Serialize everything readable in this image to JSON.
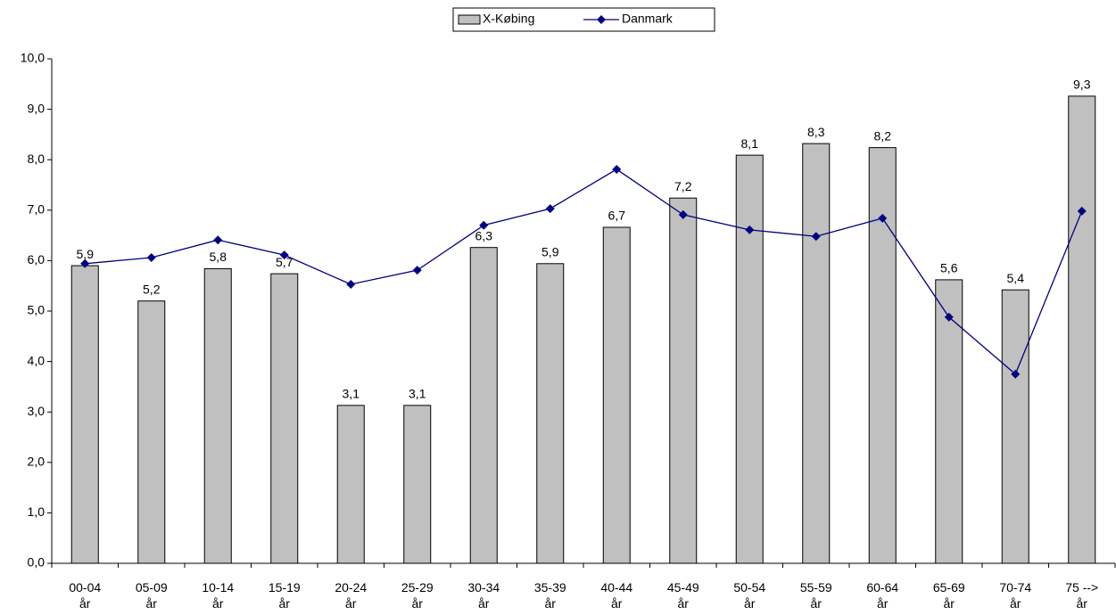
{
  "chart_data": {
    "type": "bar-line",
    "categories": [
      "00-04 år",
      "05-09 år",
      "10-14 år",
      "15-19 år",
      "20-24 år",
      "25-29 år",
      "30-34 år",
      "35-39 år",
      "40-44 år",
      "45-49 år",
      "50-54 år",
      "55-59 år",
      "60-64 år",
      "65-69 år",
      "70-74 år",
      "75 --> år"
    ],
    "series": [
      {
        "name": "X-Købing",
        "type": "bar",
        "color": "#c0c0c0",
        "values": [
          5.9,
          5.2,
          5.84,
          5.74,
          3.13,
          3.13,
          6.26,
          5.94,
          6.66,
          7.24,
          8.09,
          8.32,
          8.24,
          5.62,
          5.42,
          9.26
        ],
        "value_labels": [
          "5,9",
          "5,2",
          "5,8",
          "5,7",
          "3,1",
          "3,1",
          "6,3",
          "5,9",
          "6,7",
          "7,2",
          "8,1",
          "8,3",
          "8,2",
          "5,6",
          "5,4",
          "9,3"
        ]
      },
      {
        "name": "Danmark",
        "type": "line",
        "color": "#000080",
        "values": [
          5.94,
          6.06,
          6.41,
          6.11,
          5.53,
          5.81,
          6.7,
          7.03,
          7.81,
          6.91,
          6.61,
          6.48,
          6.84,
          4.88,
          3.75,
          6.98
        ]
      }
    ],
    "ylim": [
      0,
      10
    ],
    "yticks": [
      {
        "value": 0,
        "label": "0,0"
      },
      {
        "value": 1,
        "label": "1,0"
      },
      {
        "value": 2,
        "label": "2,0"
      },
      {
        "value": 3,
        "label": "3,0"
      },
      {
        "value": 4,
        "label": "4,0"
      },
      {
        "value": 5,
        "label": "5,0"
      },
      {
        "value": 6,
        "label": "6,0"
      },
      {
        "value": 7,
        "label": "7,0"
      },
      {
        "value": 8,
        "label": "8,0"
      },
      {
        "value": 9,
        "label": "9,0"
      },
      {
        "value": 10,
        "label": "10,0"
      }
    ],
    "grid": false,
    "legend": "top"
  }
}
